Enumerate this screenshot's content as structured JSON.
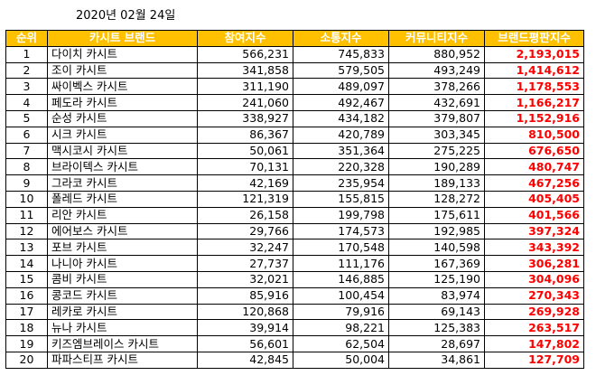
{
  "date": "2020년 02월 24일",
  "colors": {
    "header_bg": "#ffc000",
    "header_text": "#ffffff",
    "reputation_text": "#ff0000"
  },
  "columns": [
    "순위",
    "카시트 브랜드",
    "참여지수",
    "소통지수",
    "커뮤니티지수",
    "브랜드평판지수"
  ],
  "rows": [
    {
      "rank": "1",
      "brand": "다이치 카시트",
      "participation": "566,231",
      "communication": "745,833",
      "community": "880,952",
      "reputation": "2,193,015"
    },
    {
      "rank": "2",
      "brand": "조이 카시트",
      "participation": "341,858",
      "communication": "579,505",
      "community": "493,249",
      "reputation": "1,414,612"
    },
    {
      "rank": "3",
      "brand": "싸이벡스 카시트",
      "participation": "311,190",
      "communication": "489,097",
      "community": "378,266",
      "reputation": "1,178,553"
    },
    {
      "rank": "4",
      "brand": "페도라 카시트",
      "participation": "241,060",
      "communication": "492,467",
      "community": "432,691",
      "reputation": "1,166,217"
    },
    {
      "rank": "5",
      "brand": "순성 카시트",
      "participation": "338,927",
      "communication": "434,182",
      "community": "379,807",
      "reputation": "1,152,916"
    },
    {
      "rank": "6",
      "brand": "시크 카시트",
      "participation": "86,367",
      "communication": "420,789",
      "community": "303,345",
      "reputation": "810,500"
    },
    {
      "rank": "7",
      "brand": "맥시코시 카시트",
      "participation": "50,061",
      "communication": "351,364",
      "community": "275,225",
      "reputation": "676,650"
    },
    {
      "rank": "8",
      "brand": "브라이텍스 카시트",
      "participation": "70,131",
      "communication": "220,328",
      "community": "190,289",
      "reputation": "480,747"
    },
    {
      "rank": "9",
      "brand": "그라코 카시트",
      "participation": "42,169",
      "communication": "235,954",
      "community": "189,133",
      "reputation": "467,256"
    },
    {
      "rank": "10",
      "brand": "폴레드 카시트",
      "participation": "121,319",
      "communication": "155,815",
      "community": "128,272",
      "reputation": "405,405"
    },
    {
      "rank": "11",
      "brand": "리안 카시트",
      "participation": "26,158",
      "communication": "199,798",
      "community": "175,611",
      "reputation": "401,566"
    },
    {
      "rank": "12",
      "brand": "에어보스 카시트",
      "participation": "29,766",
      "communication": "174,573",
      "community": "192,985",
      "reputation": "397,324"
    },
    {
      "rank": "13",
      "brand": "포브 카시트",
      "participation": "32,247",
      "communication": "170,548",
      "community": "140,598",
      "reputation": "343,392"
    },
    {
      "rank": "14",
      "brand": "나니아 카시트",
      "participation": "27,737",
      "communication": "111,176",
      "community": "167,369",
      "reputation": "306,281"
    },
    {
      "rank": "15",
      "brand": "콤비 카시트",
      "participation": "32,021",
      "communication": "146,885",
      "community": "125,190",
      "reputation": "304,096"
    },
    {
      "rank": "16",
      "brand": "콩코드 카시트",
      "participation": "85,916",
      "communication": "100,454",
      "community": "83,974",
      "reputation": "270,343"
    },
    {
      "rank": "17",
      "brand": "레카로 카시트",
      "participation": "120,868",
      "communication": "79,916",
      "community": "69,143",
      "reputation": "269,928"
    },
    {
      "rank": "18",
      "brand": "뉴나 카시트",
      "participation": "39,914",
      "communication": "98,221",
      "community": "125,383",
      "reputation": "263,517"
    },
    {
      "rank": "19",
      "brand": "키즈엠브레이스 카시트",
      "participation": "56,601",
      "communication": "62,504",
      "community": "28,697",
      "reputation": "147,802"
    },
    {
      "rank": "20",
      "brand": "파파스티프 카시트",
      "participation": "42,845",
      "communication": "50,004",
      "community": "34,861",
      "reputation": "127,709"
    }
  ]
}
